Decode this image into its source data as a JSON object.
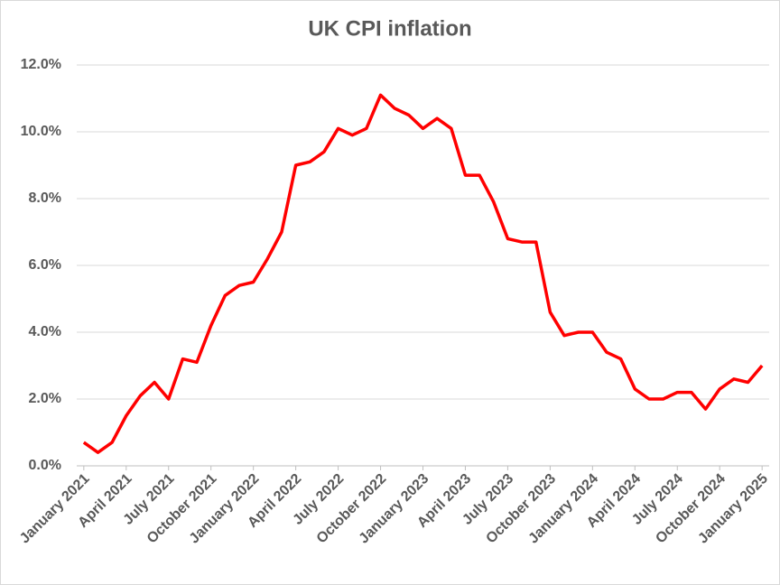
{
  "chart_data": {
    "type": "line",
    "title": "UK CPI inflation",
    "categories": [
      "January 2021",
      null,
      null,
      "April 2021",
      null,
      null,
      "July 2021",
      null,
      null,
      "October 2021",
      null,
      null,
      "January 2022",
      null,
      null,
      "April 2022",
      null,
      null,
      "July 2022",
      null,
      null,
      "October 2022",
      null,
      null,
      "January 2023",
      null,
      null,
      "April 2023",
      null,
      null,
      "July 2023",
      null,
      null,
      "October 2023",
      null,
      null,
      "January 2024",
      null,
      null,
      "April 2024",
      null,
      null,
      "July 2024",
      null,
      null,
      "October 2024",
      null,
      null,
      "January 2025"
    ],
    "series": [
      {
        "name": "UK CPI inflation",
        "color": "#ff0000",
        "values": [
          0.7,
          0.4,
          0.7,
          1.5,
          2.1,
          2.5,
          2.0,
          3.2,
          3.1,
          4.2,
          5.1,
          5.4,
          5.5,
          6.2,
          7.0,
          9.0,
          9.1,
          9.4,
          10.1,
          9.9,
          10.1,
          11.1,
          10.7,
          10.5,
          10.1,
          10.4,
          10.1,
          8.7,
          8.7,
          7.9,
          6.8,
          6.7,
          6.7,
          4.6,
          3.9,
          4.0,
          4.0,
          3.4,
          3.2,
          2.3,
          2.0,
          2.0,
          2.2,
          2.2,
          1.7,
          2.3,
          2.6,
          2.5,
          3.0
        ]
      }
    ],
    "ylim": [
      0,
      12
    ],
    "yticks": [
      {
        "value": 0,
        "label": "0.0%"
      },
      {
        "value": 2,
        "label": "2.0%"
      },
      {
        "value": 4,
        "label": "4.0%"
      },
      {
        "value": 6,
        "label": "6.0%"
      },
      {
        "value": 8,
        "label": "8.0%"
      },
      {
        "value": 10,
        "label": "10.0%"
      },
      {
        "value": 12,
        "label": "12.0%"
      }
    ],
    "grid": true
  }
}
